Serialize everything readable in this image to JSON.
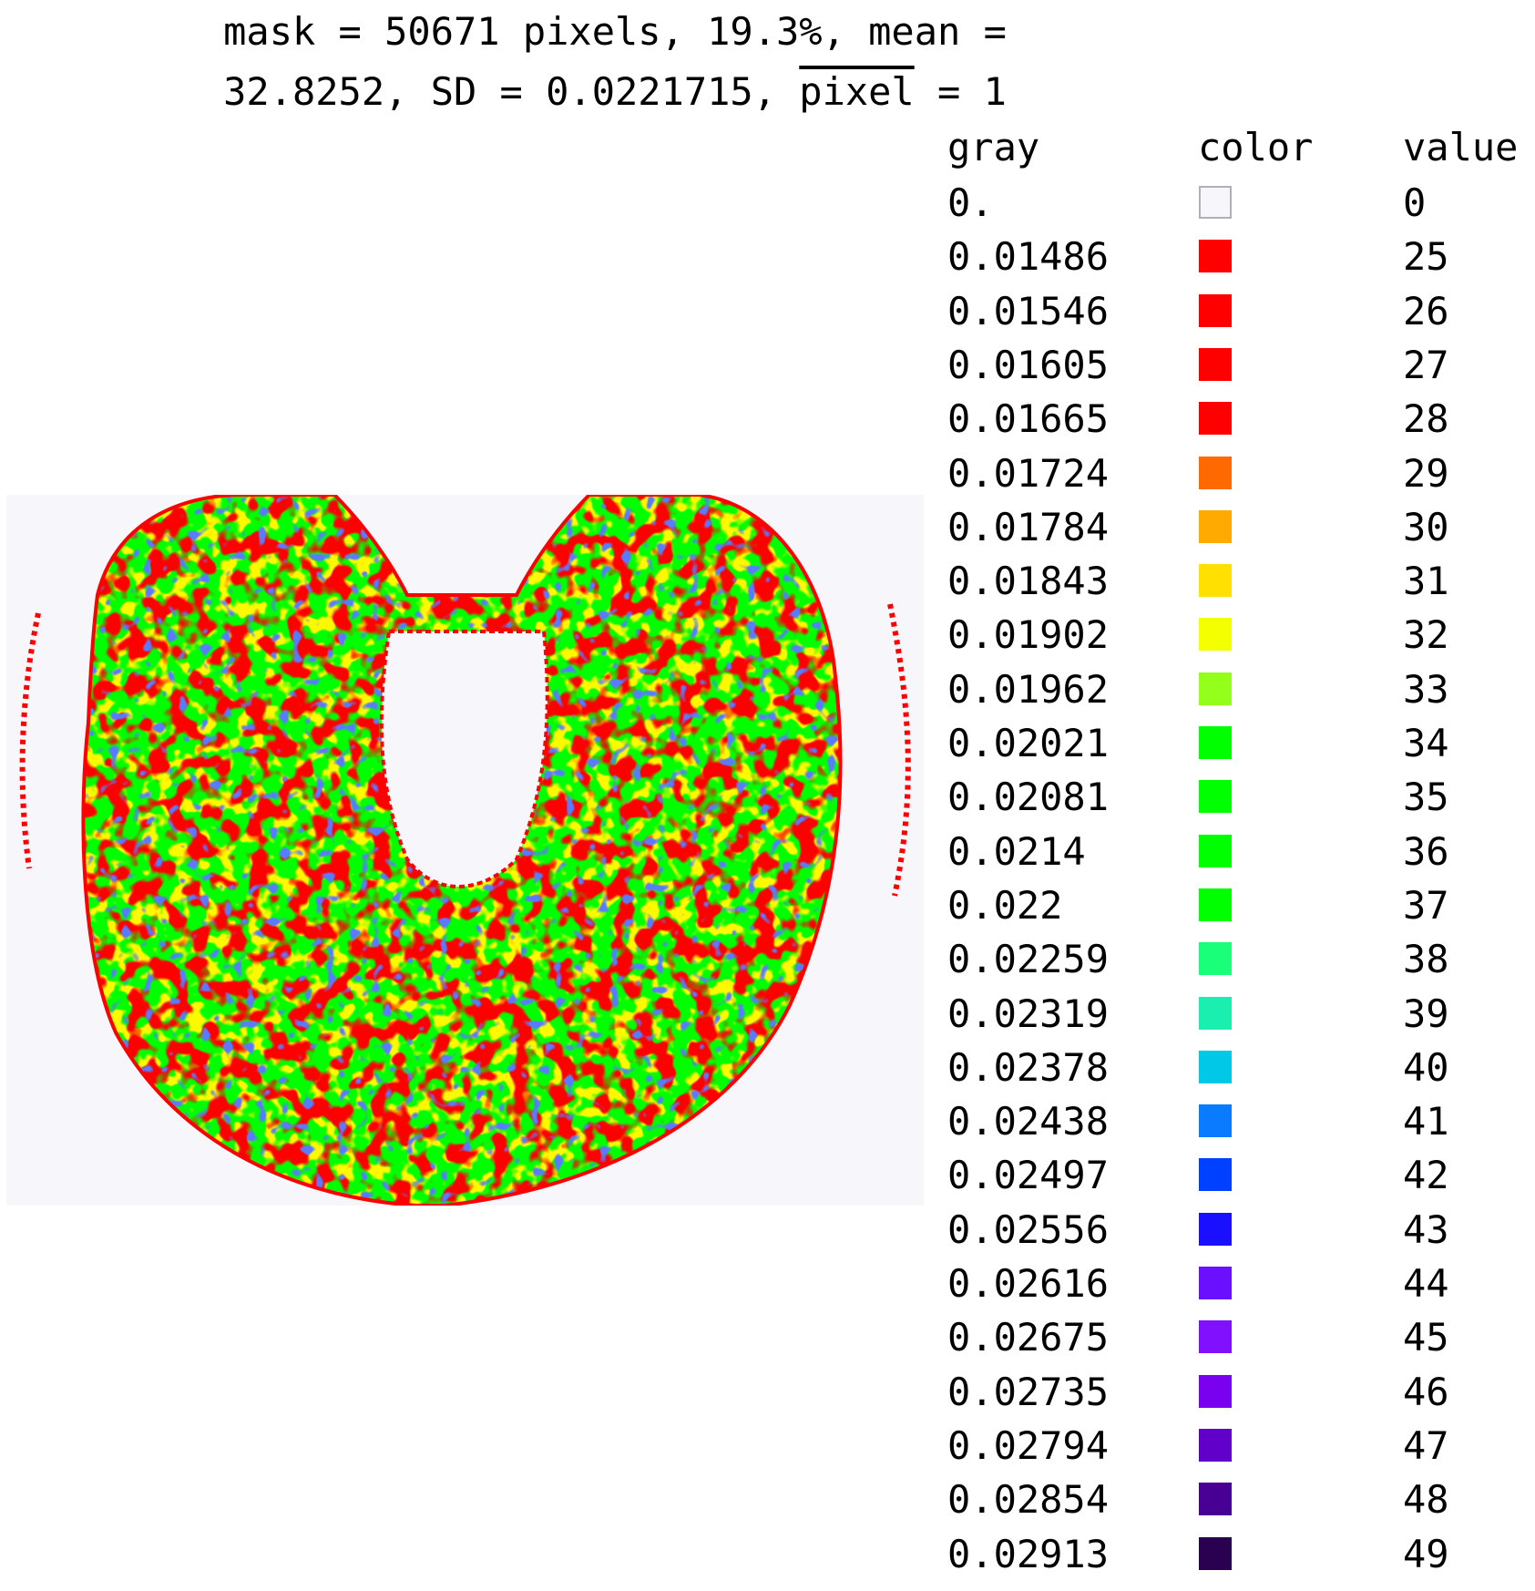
{
  "title": {
    "line1": "mask = 50671 pixels, 19.3%, mean =",
    "line2_prefix": "32.8252, SD = 0.0221715, ",
    "line2_overline": "pixel",
    "line2_suffix": " = 1"
  },
  "chart_data": {
    "type": "heatmap",
    "legend_headers": {
      "gray": "gray",
      "color": "color",
      "value": "value"
    },
    "legend": [
      {
        "gray": "0.",
        "color": "#f6f6fb",
        "value": "0"
      },
      {
        "gray": "0.01486",
        "color": "#ff0000",
        "value": "25"
      },
      {
        "gray": "0.01546",
        "color": "#ff0000",
        "value": "26"
      },
      {
        "gray": "0.01605",
        "color": "#ff0000",
        "value": "27"
      },
      {
        "gray": "0.01665",
        "color": "#ff0000",
        "value": "28"
      },
      {
        "gray": "0.01724",
        "color": "#ff6a00",
        "value": "29"
      },
      {
        "gray": "0.01784",
        "color": "#ffaa00",
        "value": "30"
      },
      {
        "gray": "0.01843",
        "color": "#ffe000",
        "value": "31"
      },
      {
        "gray": "0.01902",
        "color": "#f4ff00",
        "value": "32"
      },
      {
        "gray": "0.01962",
        "color": "#94ff1a",
        "value": "33"
      },
      {
        "gray": "0.02021",
        "color": "#00ff00",
        "value": "34"
      },
      {
        "gray": "0.02081",
        "color": "#00ff00",
        "value": "35"
      },
      {
        "gray": "0.0214",
        "color": "#00ff00",
        "value": "36"
      },
      {
        "gray": "0.022",
        "color": "#00ff00",
        "value": "37"
      },
      {
        "gray": "0.02259",
        "color": "#1aff7a",
        "value": "38"
      },
      {
        "gray": "0.02319",
        "color": "#1aefb0",
        "value": "39"
      },
      {
        "gray": "0.02378",
        "color": "#00c8e6",
        "value": "40"
      },
      {
        "gray": "0.02438",
        "color": "#0a7aff",
        "value": "41"
      },
      {
        "gray": "0.02497",
        "color": "#0040ff",
        "value": "42"
      },
      {
        "gray": "0.02556",
        "color": "#1a10ff",
        "value": "43"
      },
      {
        "gray": "0.02616",
        "color": "#6a10ff",
        "value": "44"
      },
      {
        "gray": "0.02675",
        "color": "#8010ff",
        "value": "45"
      },
      {
        "gray": "0.02735",
        "color": "#7a00f0",
        "value": "46"
      },
      {
        "gray": "0.02794",
        "color": "#6000c8",
        "value": "47"
      },
      {
        "gray": "0.02854",
        "color": "#480094",
        "value": "48"
      },
      {
        "gray": "0.02913",
        "color": "#2a0050",
        "value": "49"
      }
    ]
  }
}
